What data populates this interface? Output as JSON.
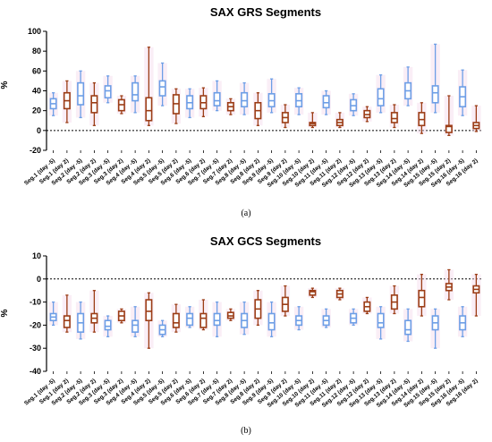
{
  "colors": {
    "day_minus5": "#6d9ee6",
    "day_2": "#9b3d16",
    "shade": "#f4d9ea"
  },
  "panel_labels": [
    "(a)",
    "(b)"
  ],
  "categories": [
    "Seg.1 (day -5)",
    "Seg.1 (day 2)",
    "Seg.2 (day -5)",
    "Seg.2 (day 2)",
    "Seg.3 (day -5)",
    "Seg.3 (day 2)",
    "Seg.4 (day -5)",
    "Seg.4 (day 2)",
    "Seg.5 (day -5)",
    "Seg.5 (day 2)",
    "Seg.6 (day -5)",
    "Seg.6 (day 2)",
    "Seg.7 (day -5)",
    "Seg.7 (day 2)",
    "Seg.8 (day -5)",
    "Seg.8 (day 2)",
    "Seg.9 (day -5)",
    "Seg.9 (day 2)",
    "Seg.10 (day -5)",
    "Seg.10 (day 2)",
    "Seg.11 (day -5)",
    "Seg.11 (day 2)",
    "Seg.12 (day -5)",
    "Seg.12 (day 2)",
    "Seg.13 (day -5)",
    "Seg.13 (day 2)",
    "Seg.14 (day -5)",
    "Seg.14 (day 2)",
    "Seg.15 (day -5)",
    "Seg.15 (day 2)",
    "Seg.16 (day -5)",
    "Seg.16 (day 2)"
  ],
  "chart_data": [
    {
      "type": "box",
      "title": "SAX GRS Segments",
      "ylabel": "%",
      "ylim": [
        -20,
        100
      ],
      "yticks": [
        -20,
        0,
        20,
        40,
        60,
        80,
        100
      ],
      "reference_line": 0,
      "grid": false,
      "boxes": [
        {
          "min": 15,
          "q1": 22,
          "median": 27,
          "q3": 32,
          "max": 38
        },
        {
          "min": 8,
          "q1": 22,
          "median": 30,
          "q3": 38,
          "max": 50
        },
        {
          "min": 13,
          "q1": 26,
          "median": 35,
          "q3": 48,
          "max": 60
        },
        {
          "min": 5,
          "q1": 18,
          "median": 28,
          "q3": 35,
          "max": 48
        },
        {
          "min": 28,
          "q1": 33,
          "median": 40,
          "q3": 45,
          "max": 55
        },
        {
          "min": 17,
          "q1": 20,
          "median": 26,
          "q3": 31,
          "max": 35
        },
        {
          "min": 18,
          "q1": 30,
          "median": 36,
          "q3": 48,
          "max": 55
        },
        {
          "min": 5,
          "q1": 10,
          "median": 20,
          "q3": 33,
          "max": 84
        },
        {
          "min": 25,
          "q1": 35,
          "median": 44,
          "q3": 50,
          "max": 68
        },
        {
          "min": 7,
          "q1": 17,
          "median": 27,
          "q3": 36,
          "max": 42
        },
        {
          "min": 13,
          "q1": 22,
          "median": 28,
          "q3": 35,
          "max": 42
        },
        {
          "min": 14,
          "q1": 22,
          "median": 28,
          "q3": 35,
          "max": 43
        },
        {
          "min": 20,
          "q1": 25,
          "median": 30,
          "q3": 38,
          "max": 50
        },
        {
          "min": 16,
          "q1": 20,
          "median": 24,
          "q3": 28,
          "max": 32
        },
        {
          "min": 16,
          "q1": 24,
          "median": 30,
          "q3": 38,
          "max": 48
        },
        {
          "min": 5,
          "q1": 12,
          "median": 20,
          "q3": 28,
          "max": 38
        },
        {
          "min": 18,
          "q1": 24,
          "median": 30,
          "q3": 37,
          "max": 52
        },
        {
          "min": 3,
          "q1": 8,
          "median": 13,
          "q3": 18,
          "max": 26
        },
        {
          "min": 16,
          "q1": 24,
          "median": 30,
          "q3": 37,
          "max": 43
        },
        {
          "min": 3,
          "q1": 5,
          "median": 7,
          "q3": 8,
          "max": 18
        },
        {
          "min": 16,
          "q1": 23,
          "median": 28,
          "q3": 35,
          "max": 40
        },
        {
          "min": 3,
          "q1": 5,
          "median": 8,
          "q3": 11,
          "max": 18
        },
        {
          "min": 15,
          "q1": 20,
          "median": 25,
          "q3": 31,
          "max": 37
        },
        {
          "min": 9,
          "q1": 13,
          "median": 16,
          "q3": 20,
          "max": 24
        },
        {
          "min": 18,
          "q1": 25,
          "median": 32,
          "q3": 42,
          "max": 56
        },
        {
          "min": 3,
          "q1": 8,
          "median": 12,
          "q3": 18,
          "max": 26
        },
        {
          "min": 25,
          "q1": 32,
          "median": 40,
          "q3": 48,
          "max": 64
        },
        {
          "min": -3,
          "q1": 5,
          "median": 11,
          "q3": 18,
          "max": 28
        },
        {
          "min": 18,
          "q1": 28,
          "median": 38,
          "q3": 45,
          "max": 87
        },
        {
          "min": -5,
          "q1": -2,
          "median": 4,
          "q3": 5,
          "max": 35
        },
        {
          "min": 15,
          "q1": 24,
          "median": 34,
          "q3": 44,
          "max": 61
        },
        {
          "min": -1,
          "q1": 2,
          "median": 5,
          "q3": 8,
          "max": 25
        }
      ]
    },
    {
      "type": "box",
      "title": "SAX GCS Segments",
      "ylabel": "%",
      "ylim": [
        -40,
        10
      ],
      "yticks": [
        -40,
        -30,
        -20,
        -10,
        0,
        10
      ],
      "reference_line": 0,
      "grid": false,
      "boxes": [
        {
          "min": -20,
          "q1": -18,
          "median": -16.5,
          "q3": -15,
          "max": -10
        },
        {
          "min": -23,
          "q1": -21,
          "median": -18,
          "q3": -16,
          "max": -7
        },
        {
          "min": -26,
          "q1": -23,
          "median": -19,
          "q3": -15,
          "max": -10
        },
        {
          "min": -23,
          "q1": -19,
          "median": -17,
          "q3": -15,
          "max": -5
        },
        {
          "min": -25,
          "q1": -22,
          "median": -20.5,
          "q3": -18,
          "max": -16
        },
        {
          "min": -19,
          "q1": -18,
          "median": -16,
          "q3": -14,
          "max": -13
        },
        {
          "min": -25,
          "q1": -23,
          "median": -20,
          "q3": -18,
          "max": -12
        },
        {
          "min": -30,
          "q1": -18,
          "median": -14,
          "q3": -9,
          "max": -6
        },
        {
          "min": -25,
          "q1": -24,
          "median": -22,
          "q3": -20,
          "max": -18
        },
        {
          "min": -23,
          "q1": -21,
          "median": -19,
          "q3": -15,
          "max": -11
        },
        {
          "min": -21,
          "q1": -20,
          "median": -17,
          "q3": -15,
          "max": -12
        },
        {
          "min": -22,
          "q1": -21,
          "median": -17,
          "q3": -15,
          "max": -9
        },
        {
          "min": -25,
          "q1": -20,
          "median": -18,
          "q3": -15,
          "max": -10
        },
        {
          "min": -18,
          "q1": -17,
          "median": -16,
          "q3": -14.5,
          "max": -13
        },
        {
          "min": -24,
          "q1": -21,
          "median": -18,
          "q3": -15,
          "max": -10
        },
        {
          "min": -20,
          "q1": -17,
          "median": -13,
          "q3": -9,
          "max": -5
        },
        {
          "min": -25,
          "q1": -22,
          "median": -19,
          "q3": -15,
          "max": -10
        },
        {
          "min": -16,
          "q1": -14,
          "median": -11,
          "q3": -8,
          "max": -3
        },
        {
          "min": -22,
          "q1": -20,
          "median": -18,
          "q3": -16,
          "max": -12
        },
        {
          "min": -8,
          "q1": -7,
          "median": -5.5,
          "q3": -5,
          "max": -4
        },
        {
          "min": -21,
          "q1": -20,
          "median": -18,
          "q3": -16,
          "max": -13
        },
        {
          "min": -9,
          "q1": -8,
          "median": -6.5,
          "q3": -5,
          "max": -4
        },
        {
          "min": -20,
          "q1": -19,
          "median": -17,
          "q3": -15,
          "max": -13
        },
        {
          "min": -15,
          "q1": -14,
          "median": -12,
          "q3": -10,
          "max": -8
        },
        {
          "min": -26,
          "q1": -21,
          "median": -19,
          "q3": -15,
          "max": -12
        },
        {
          "min": -15,
          "q1": -13,
          "median": -10,
          "q3": -7,
          "max": -3
        },
        {
          "min": -27,
          "q1": -24,
          "median": -22,
          "q3": -18,
          "max": -13
        },
        {
          "min": -16,
          "q1": -12,
          "median": -8,
          "q3": -5,
          "max": 2
        },
        {
          "min": -30,
          "q1": -22,
          "median": -19,
          "q3": -16,
          "max": -13
        },
        {
          "min": -9,
          "q1": -5,
          "median": -3.5,
          "q3": -2,
          "max": 4
        },
        {
          "min": -25,
          "q1": -22,
          "median": -19,
          "q3": -16,
          "max": -12
        },
        {
          "min": -16,
          "q1": -6,
          "median": -4.5,
          "q3": -3,
          "max": 2
        }
      ]
    }
  ]
}
